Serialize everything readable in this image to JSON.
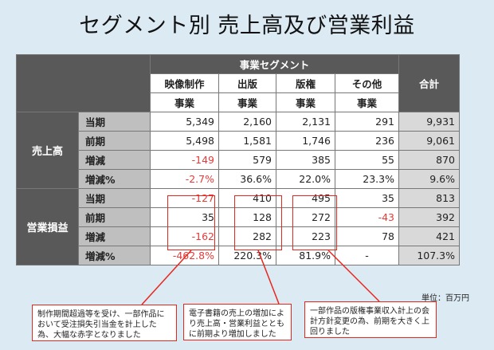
{
  "title": "セグメント別 売上高及び営業利益",
  "table": {
    "group_header": "事業セグメント",
    "columns": [
      {
        "line1": "映像制作",
        "line2": "事業"
      },
      {
        "line1": "出版",
        "line2": "事業"
      },
      {
        "line1": "版権",
        "line2": "事業"
      },
      {
        "line1": "その他",
        "line2": "事業"
      }
    ],
    "total_header": "合計",
    "sales": {
      "label": "売上高",
      "rows": [
        {
          "label": "当期",
          "values": [
            "5,349",
            "2,160",
            "2,131",
            "291"
          ],
          "total": "9,931"
        },
        {
          "label": "前期",
          "values": [
            "5,498",
            "1,581",
            "1,746",
            "236"
          ],
          "total": "9,061"
        },
        {
          "label": "増減",
          "values": [
            "-149",
            "579",
            "385",
            "55"
          ],
          "total": "870"
        },
        {
          "label": "増減%",
          "values": [
            "-2.7%",
            "36.6%",
            "22.0%",
            "23.3%"
          ],
          "total": "9.6%"
        }
      ]
    },
    "op_profit": {
      "label": "営業損益",
      "rows": [
        {
          "label": "当期",
          "values": [
            "-127",
            "410",
            "495",
            "35"
          ],
          "total": "813"
        },
        {
          "label": "前期",
          "values": [
            "35",
            "128",
            "272",
            "-43"
          ],
          "total": "392"
        },
        {
          "label": "増減",
          "values": [
            "-162",
            "282",
            "223",
            "78"
          ],
          "total": "421"
        },
        {
          "label": "増減%",
          "values": [
            "-462.8%",
            "220.3%",
            "81.9%",
            "-"
          ],
          "total": "107.3%"
        }
      ]
    }
  },
  "unit_label": "単位：百万円",
  "callouts": {
    "video": "制作期間超過等を受け、一部作品において受注損失引当金を計上した為、大幅な赤字となりました",
    "publishing": "電子書籍の売上の増加により売上高・営業利益とともに前期より増加しました",
    "rights": "一部作品の版権事業収入計上の会計方針変更の為、前期を大きく上回りました"
  },
  "colors": {
    "background": "#dceaf4",
    "header_dark": "#595959",
    "row_label_gray": "#bfbfbf",
    "total_gray": "#d9d9d9",
    "negative_red": "#e63b3b",
    "highlight_red": "#e8261c"
  }
}
